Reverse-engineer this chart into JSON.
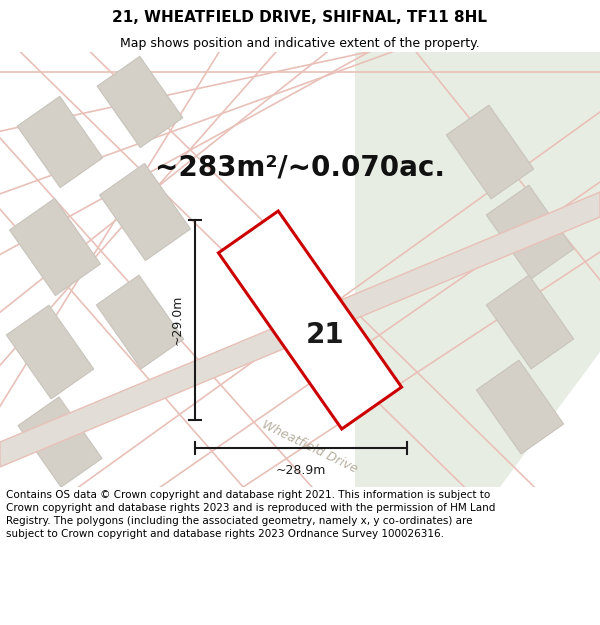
{
  "title": "21, WHEATFIELD DRIVE, SHIFNAL, TF11 8HL",
  "subtitle": "Map shows position and indicative extent of the property.",
  "area_text": "~283m²/~0.070ac.",
  "label_21": "21",
  "dim_width": "~28.9m",
  "dim_height": "~29.0m",
  "street_label": "Wheatfield Drive",
  "footer_text": "Contains OS data © Crown copyright and database right 2021. This information is subject to Crown copyright and database rights 2023 and is reproduced with the permission of HM Land Registry. The polygons (including the associated geometry, namely x, y co-ordinates) are subject to Crown copyright and database rights 2023 Ordnance Survey 100026316.",
  "bg_color": "#f0eeea",
  "green_color": "#e8ede4",
  "road_strip_color": "#e2ddd6",
  "gray_plot_fc": "#d4d0c8",
  "gray_plot_ec": "#c8c4bc",
  "road_line_color": "#e8c0b8",
  "red_color": "#cc0000",
  "dim_line_color": "#1a1a1a",
  "white": "#ffffff",
  "title_fontsize": 11,
  "subtitle_fontsize": 9,
  "area_fontsize": 20,
  "label_fontsize": 20,
  "dim_fontsize": 9,
  "street_fontsize": 9,
  "footer_fontsize": 7.5
}
